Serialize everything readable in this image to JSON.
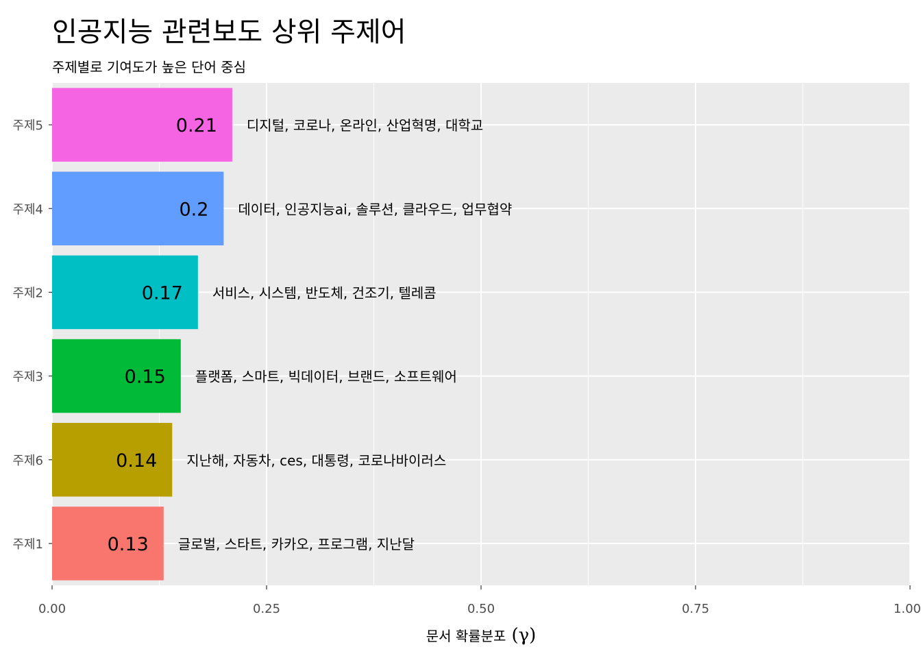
{
  "chart_data": {
    "type": "bar",
    "orientation": "horizontal",
    "title": "인공지능 관련보도 상위 주제어",
    "subtitle": "주제별로 기여도가 높은 단어 중심",
    "xlabel": "문서 확률분포",
    "xlabel_symbol": "(γ)",
    "ylabel": "",
    "xlim": [
      0,
      1
    ],
    "x_ticks": [
      "0.00",
      "0.25",
      "0.50",
      "0.75",
      "1.00"
    ],
    "grid": true,
    "legend": "none",
    "categories": [
      "주제5",
      "주제4",
      "주제2",
      "주제3",
      "주제6",
      "주제1"
    ],
    "values": [
      0.21,
      0.2,
      0.17,
      0.15,
      0.14,
      0.13
    ],
    "value_labels": [
      "0.21",
      "0.2",
      "0.17",
      "0.15",
      "0.14",
      "0.13"
    ],
    "terms": [
      "디지털, 코로나, 온라인, 산업혁명, 대학교",
      "데이터, 인공지능ai, 솔루션, 클라우드, 업무협약",
      "서비스, 시스템, 반도체, 건조기, 텔레콤",
      "플랫폼, 스마트, 빅데이터, 브랜드, 소프트웨어",
      "지난해, 자동차, ces, 대통령, 코로나바이러스",
      "글로벌, 스타트, 카카오, 프로그램, 지난달"
    ],
    "colors": [
      "#F564E3",
      "#619CFF",
      "#00BFC4",
      "#00BA38",
      "#B79F00",
      "#F8766D"
    ]
  }
}
